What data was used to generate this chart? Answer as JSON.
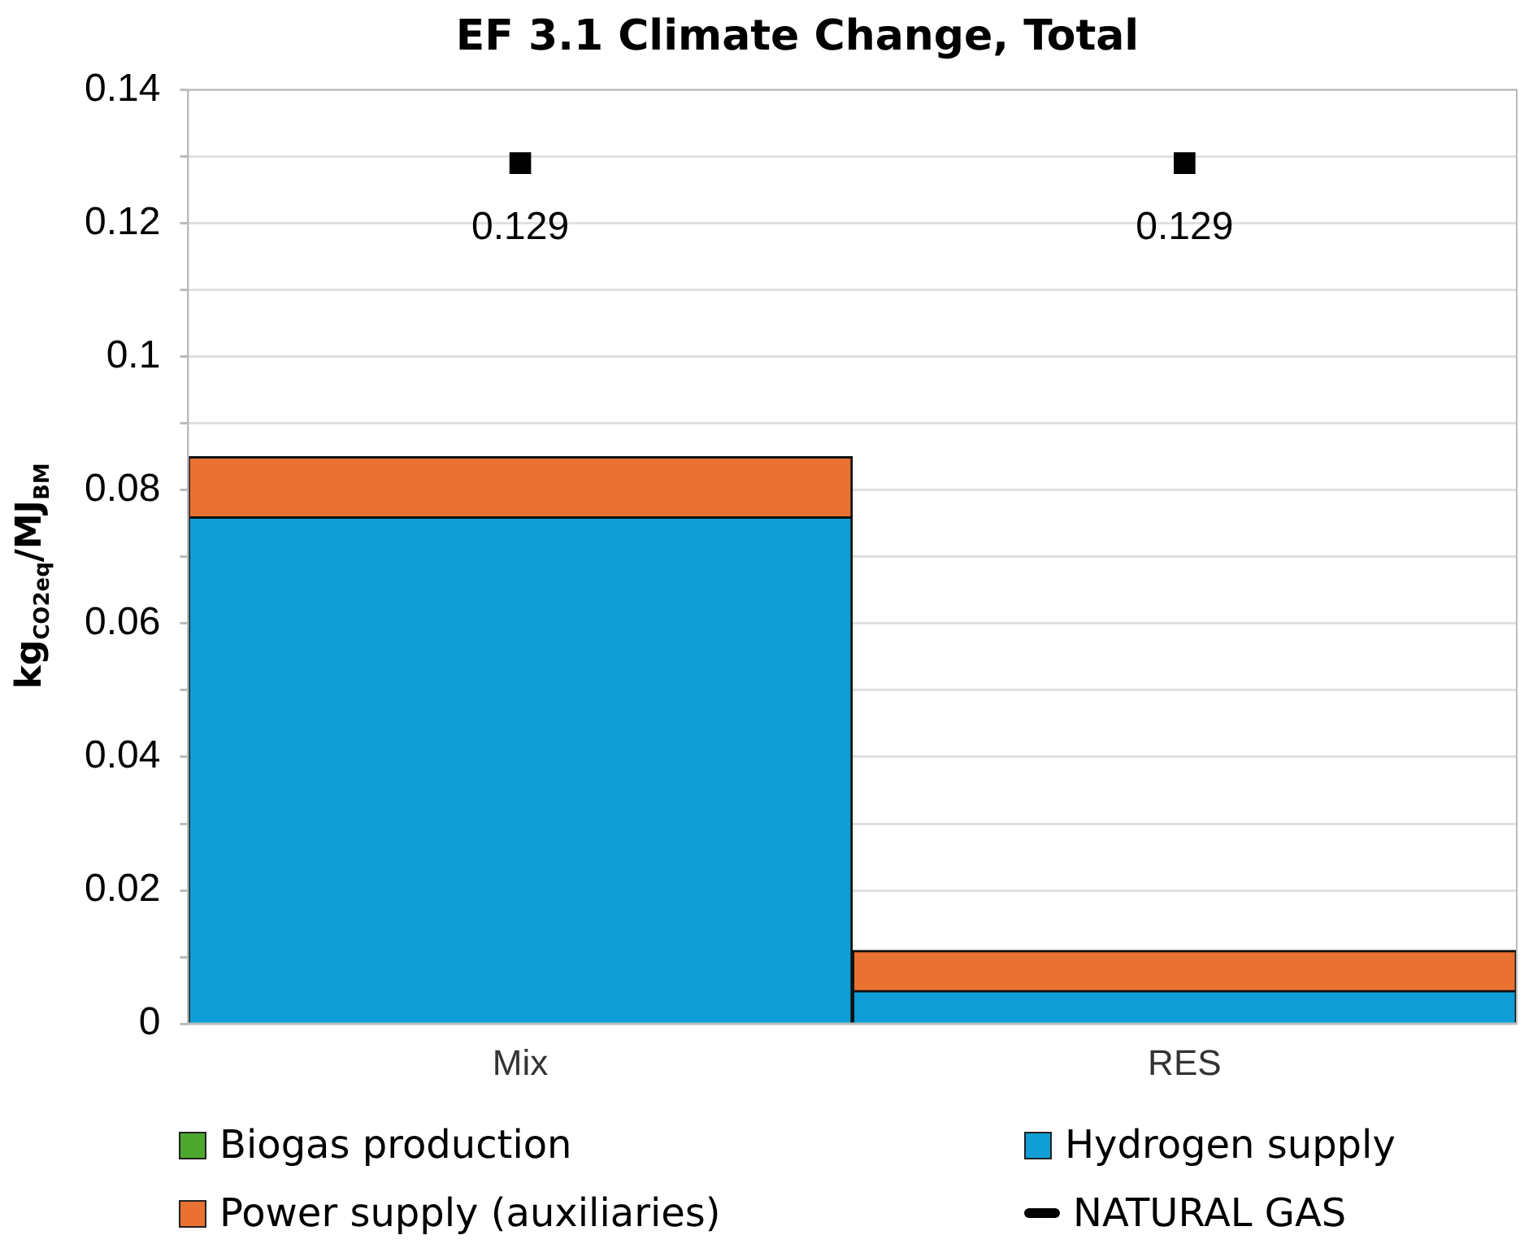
{
  "chart_data": {
    "type": "bar",
    "stacked": true,
    "title": "EF 3.1 Climate Change, Total",
    "ylabel": "kg$_{CO2eq}$/MJ$_{BM}$",
    "categories": [
      "Mix",
      "RES"
    ],
    "series": [
      {
        "name": "Biogas production",
        "color": "#4ea72e",
        "values": [
          0,
          0
        ]
      },
      {
        "name": "Hydrogen supply",
        "color": "#0f9ed5",
        "values": [
          0.076,
          0.005
        ]
      },
      {
        "name": "Power supply (auxiliaries)",
        "color": "#e97132",
        "values": [
          0.009,
          0.006
        ]
      },
      {
        "name": "NATURAL GAS",
        "type": "scatter",
        "color": "#000000",
        "x": [
          "Mix",
          "RES"
        ],
        "values": [
          0.129,
          0.129
        ],
        "value_labels": [
          "0.129",
          "0.129"
        ]
      }
    ],
    "ylim": [
      0,
      0.14
    ],
    "yticks": [
      0,
      {
        "value": 0.01,
        "label": null
      },
      0.02,
      {
        "value": 0.03,
        "label": null
      },
      0.04,
      {
        "value": 0.05,
        "label": null
      },
      0.06,
      {
        "value": 0.07,
        "label": null
      },
      0.08,
      {
        "value": 0.09,
        "label": null
      },
      0.1,
      {
        "value": 0.11,
        "label": null
      },
      0.12,
      {
        "value": 0.13,
        "label": null
      },
      0.14
    ],
    "grid": "y",
    "legend": "bottom"
  }
}
